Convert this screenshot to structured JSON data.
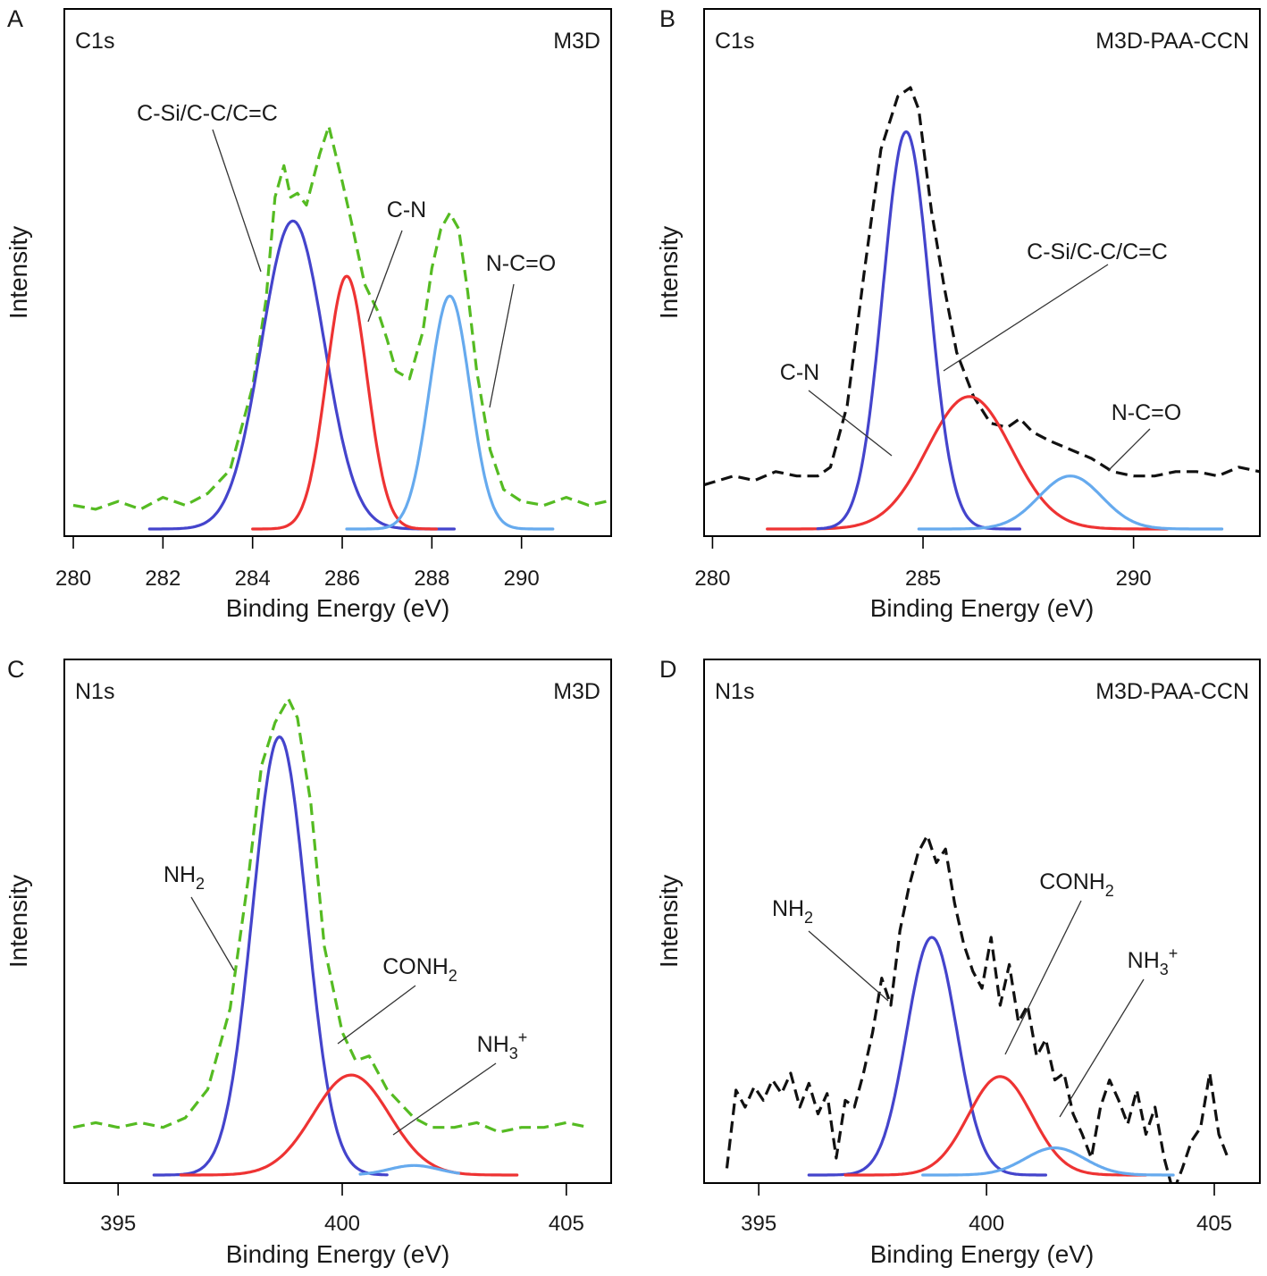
{
  "chart_data": [
    {
      "type": "line",
      "panel": "A",
      "label_left": "C1s",
      "label_right": "M3D",
      "xlabel": "Binding Energy (eV)",
      "ylabel": "Intensity",
      "xlim": [
        279.8,
        292
      ],
      "ylim": [
        0,
        1.0
      ],
      "xticks": [
        280,
        282,
        284,
        286,
        288,
        290
      ],
      "grid": false,
      "series": [
        {
          "role": "measured",
          "color": "#55bb22",
          "dashed": true,
          "x": [
            280.0,
            280.5,
            281.0,
            281.5,
            282.0,
            282.5,
            283.0,
            283.5,
            284.0,
            284.3,
            284.5,
            284.7,
            284.85,
            285.0,
            285.2,
            285.5,
            285.7,
            285.85,
            286.0,
            286.2,
            286.5,
            286.8,
            287.0,
            287.2,
            287.5,
            287.8,
            288.0,
            288.2,
            288.4,
            288.6,
            288.8,
            289.0,
            289.3,
            289.6,
            290.0,
            290.5,
            291.0,
            291.5,
            291.9
          ],
          "y": [
            0.06,
            0.05,
            0.07,
            0.05,
            0.08,
            0.06,
            0.09,
            0.15,
            0.36,
            0.58,
            0.84,
            0.92,
            0.84,
            0.85,
            0.82,
            0.95,
            1.02,
            0.95,
            0.88,
            0.78,
            0.62,
            0.55,
            0.48,
            0.4,
            0.38,
            0.5,
            0.66,
            0.76,
            0.8,
            0.76,
            0.6,
            0.4,
            0.2,
            0.1,
            0.07,
            0.06,
            0.08,
            0.06,
            0.07
          ]
        },
        {
          "role": "fit",
          "name": "C-Si/C-C/C=C",
          "color": "#4444cc",
          "center": 284.9,
          "sigma": 0.7,
          "height": 0.78,
          "xrange": [
            281.7,
            288.5
          ]
        },
        {
          "role": "fit",
          "name": "C-N",
          "color": "#ee3333",
          "center": 286.1,
          "sigma": 0.45,
          "height": 0.64,
          "xrange": [
            284.0,
            288.1
          ]
        },
        {
          "role": "fit",
          "name": "N-C=O",
          "color": "#66aaee",
          "center": 288.4,
          "sigma": 0.45,
          "height": 0.59,
          "xrange": [
            286.1,
            290.7
          ]
        }
      ]
    },
    {
      "type": "line",
      "panel": "B",
      "label_left": "C1s",
      "label_right": "M3D-PAA-CCN",
      "xlabel": "Binding Energy (eV)",
      "ylabel": "Intensity",
      "xlim": [
        279.8,
        293
      ],
      "ylim": [
        0,
        1.0
      ],
      "xticks": [
        280,
        285,
        290
      ],
      "grid": false,
      "series": [
        {
          "role": "measured",
          "color": "#111111",
          "dashed": true,
          "x": [
            279.8,
            280.5,
            281.0,
            281.5,
            282.0,
            282.5,
            282.8,
            283.2,
            283.6,
            284.0,
            284.4,
            284.7,
            284.9,
            285.2,
            285.5,
            285.8,
            286.2,
            286.6,
            287.0,
            287.3,
            287.6,
            288.0,
            288.5,
            289.0,
            289.5,
            290.0,
            290.5,
            291.0,
            291.5,
            292.0,
            292.5,
            293.0
          ],
          "y": [
            0.1,
            0.12,
            0.11,
            0.13,
            0.12,
            0.12,
            0.14,
            0.28,
            0.58,
            0.86,
            0.98,
            1.0,
            0.95,
            0.72,
            0.55,
            0.4,
            0.3,
            0.24,
            0.23,
            0.25,
            0.22,
            0.2,
            0.18,
            0.16,
            0.13,
            0.12,
            0.12,
            0.13,
            0.13,
            0.12,
            0.14,
            0.13
          ]
        },
        {
          "role": "fit",
          "name": "C-Si/C-C/C=C",
          "color": "#ee3333",
          "center": 286.1,
          "sigma": 1.0,
          "height": 0.3,
          "xrange": [
            281.3,
            290.8
          ]
        },
        {
          "role": "fit",
          "name": "C-N",
          "color": "#4444cc",
          "center": 284.6,
          "sigma": 0.55,
          "height": 0.9,
          "xrange": [
            282.5,
            287.3
          ]
        },
        {
          "role": "fit",
          "name": "N-C=O",
          "color": "#66aaee",
          "center": 288.5,
          "sigma": 0.75,
          "height": 0.12,
          "xrange": [
            284.9,
            292.1
          ]
        }
      ]
    },
    {
      "type": "line",
      "panel": "C",
      "label_left": "N1s",
      "label_right": "M3D",
      "xlabel": "Binding Energy (eV)",
      "ylabel": "Intensity",
      "xlim": [
        393.8,
        406
      ],
      "ylim": [
        0,
        1.0
      ],
      "xticks": [
        395,
        400,
        405
      ],
      "grid": false,
      "series": [
        {
          "role": "measured",
          "color": "#55bb22",
          "dashed": true,
          "x": [
            394.0,
            394.5,
            395.0,
            395.5,
            396.0,
            396.5,
            397.0,
            397.5,
            397.9,
            398.2,
            398.5,
            398.8,
            399.0,
            399.3,
            399.6,
            400.0,
            400.3,
            400.6,
            401.0,
            401.3,
            401.6,
            402.0,
            402.5,
            403.0,
            403.5,
            404.0,
            404.5,
            405.0,
            405.5
          ],
          "y": [
            0.1,
            0.11,
            0.1,
            0.11,
            0.1,
            0.12,
            0.18,
            0.35,
            0.62,
            0.86,
            0.95,
            1.0,
            0.96,
            0.78,
            0.48,
            0.3,
            0.24,
            0.25,
            0.18,
            0.15,
            0.12,
            0.1,
            0.1,
            0.11,
            0.09,
            0.1,
            0.1,
            0.11,
            0.1
          ]
        },
        {
          "role": "fit",
          "name": "NH₂",
          "color": "#4444cc",
          "center": 398.6,
          "sigma": 0.6,
          "height": 0.92,
          "xrange": [
            395.8,
            401.0
          ]
        },
        {
          "role": "fit",
          "name": "CONH₂",
          "color": "#ee3333",
          "center": 400.2,
          "sigma": 0.85,
          "height": 0.21,
          "xrange": [
            396.4,
            403.9
          ]
        },
        {
          "role": "fit",
          "name": "NH₃⁺",
          "color": "#66aaee",
          "center": 401.6,
          "sigma": 0.55,
          "height": 0.02,
          "xrange": [
            400.4,
            402.6
          ]
        }
      ]
    },
    {
      "type": "line",
      "panel": "D",
      "label_left": "N1s",
      "label_right": "M3D-PAA-CCN",
      "xlabel": "Binding Energy (eV)",
      "ylabel": "Intensity",
      "xlim": [
        393.8,
        406
      ],
      "ylim": [
        0,
        1.0
      ],
      "xticks": [
        395,
        400,
        405
      ],
      "grid": false,
      "series": [
        {
          "role": "measured",
          "color": "#111111",
          "dashed": true,
          "x": [
            394.3,
            394.5,
            394.7,
            394.9,
            395.1,
            395.3,
            395.5,
            395.7,
            395.9,
            396.1,
            396.3,
            396.5,
            396.7,
            396.9,
            397.1,
            397.3,
            397.5,
            397.7,
            397.9,
            398.1,
            398.3,
            398.5,
            398.7,
            398.9,
            399.1,
            399.3,
            399.5,
            399.7,
            399.9,
            400.1,
            400.3,
            400.5,
            400.7,
            400.9,
            401.1,
            401.3,
            401.5,
            401.7,
            401.9,
            402.1,
            402.3,
            402.5,
            402.7,
            402.9,
            403.1,
            403.3,
            403.5,
            403.7,
            403.9,
            404.1,
            404.3,
            404.5,
            404.7,
            404.9,
            405.1,
            405.3
          ],
          "y": [
            0.02,
            0.25,
            0.2,
            0.26,
            0.22,
            0.28,
            0.24,
            0.3,
            0.2,
            0.27,
            0.18,
            0.24,
            0.05,
            0.22,
            0.2,
            0.3,
            0.42,
            0.58,
            0.5,
            0.72,
            0.85,
            0.95,
            1.0,
            0.92,
            0.96,
            0.8,
            0.68,
            0.6,
            0.55,
            0.7,
            0.5,
            0.62,
            0.45,
            0.5,
            0.35,
            0.4,
            0.28,
            0.3,
            0.18,
            0.12,
            0.05,
            0.2,
            0.28,
            0.22,
            0.15,
            0.25,
            0.12,
            0.2,
            0.05,
            -0.05,
            0.02,
            0.1,
            0.14,
            0.3,
            0.12,
            0.05
          ]
        },
        {
          "role": "fit",
          "name": "NH₂",
          "color": "#4444cc",
          "center": 398.8,
          "sigma": 0.55,
          "height": 0.7,
          "xrange": [
            396.1,
            401.3
          ]
        },
        {
          "role": "fit",
          "name": "CONH₂",
          "color": "#ee3333",
          "center": 400.3,
          "sigma": 0.7,
          "height": 0.29,
          "xrange": [
            396.9,
            403.5
          ]
        },
        {
          "role": "fit",
          "name": "NH₃⁺",
          "color": "#66aaee",
          "center": 401.5,
          "sigma": 0.65,
          "height": 0.08,
          "xrange": [
            398.6,
            404.1
          ]
        }
      ]
    }
  ]
}
